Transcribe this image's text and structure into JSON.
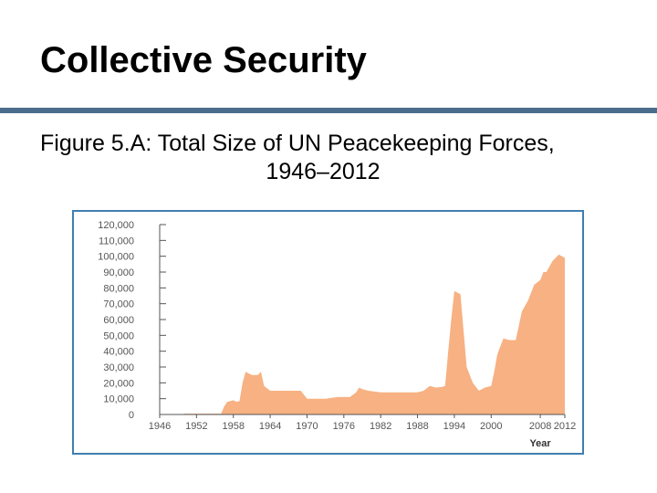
{
  "slide": {
    "title": "Collective Security",
    "caption_line1": "Figure 5.A: Total Size of UN Peacekeeping Forces,",
    "caption_line2": "1946–2012"
  },
  "colors": {
    "area": "#f7b183",
    "rule": "#4a6d8c",
    "frame": "#3f7fb0",
    "axis": "#555555"
  },
  "chart_data": {
    "type": "area",
    "title": "",
    "xlabel": "Year",
    "ylabel": "",
    "xlim": [
      1946,
      2012
    ],
    "ylim": [
      0,
      120000
    ],
    "x_ticks": [
      1946,
      1952,
      1958,
      1964,
      1970,
      1976,
      1982,
      1988,
      1994,
      2000,
      2008,
      2012
    ],
    "y_ticks": [
      0,
      10000,
      20000,
      30000,
      40000,
      50000,
      60000,
      70000,
      80000,
      90000,
      100000,
      110000,
      120000
    ],
    "x_tick_labels": [
      "1946",
      "1952",
      "1958",
      "1964",
      "1970",
      "1976",
      "1982",
      "1988",
      "1994",
      "2000",
      "2008",
      "2012"
    ],
    "y_tick_labels": [
      "0",
      "10,000",
      "20,000",
      "30,000",
      "40,000",
      "50,000",
      "60,000",
      "70,000",
      "80,000",
      "90,000",
      "100,000",
      "110,000",
      "120,000"
    ],
    "grid": false,
    "series": [
      {
        "x": [
          1950,
          1956,
          1956.5,
          1957,
          1958,
          1958.5,
          1959,
          1959.5,
          1960,
          1961,
          1962,
          1962.5,
          1963,
          1964,
          1968,
          1969,
          1970,
          1973,
          1975,
          1977,
          1978,
          1978.5,
          1979,
          1980,
          1982,
          1986,
          1988,
          1989,
          1990,
          1991,
          1992,
          1992.5,
          1993,
          1993.5,
          1994,
          1995,
          1996,
          1997,
          1998,
          1999,
          2000,
          2000.5,
          2001,
          2002,
          2003,
          2004,
          2005,
          2006,
          2007,
          2008,
          2008.5,
          2009,
          2010,
          2011,
          2012
        ],
        "y": [
          500,
          500,
          5000,
          8000,
          9000,
          8000,
          8500,
          20000,
          27000,
          25000,
          25000,
          27000,
          18000,
          15000,
          15000,
          15000,
          10000,
          10000,
          11000,
          11000,
          14000,
          17000,
          16000,
          15000,
          14000,
          14000,
          14000,
          15000,
          18000,
          17000,
          17500,
          18000,
          40000,
          60000,
          78000,
          76000,
          30000,
          20000,
          15000,
          17000,
          18000,
          27000,
          38000,
          48000,
          47000,
          47000,
          65000,
          72000,
          82000,
          85000,
          90000,
          90000,
          97000,
          101000,
          99000
        ]
      }
    ]
  }
}
